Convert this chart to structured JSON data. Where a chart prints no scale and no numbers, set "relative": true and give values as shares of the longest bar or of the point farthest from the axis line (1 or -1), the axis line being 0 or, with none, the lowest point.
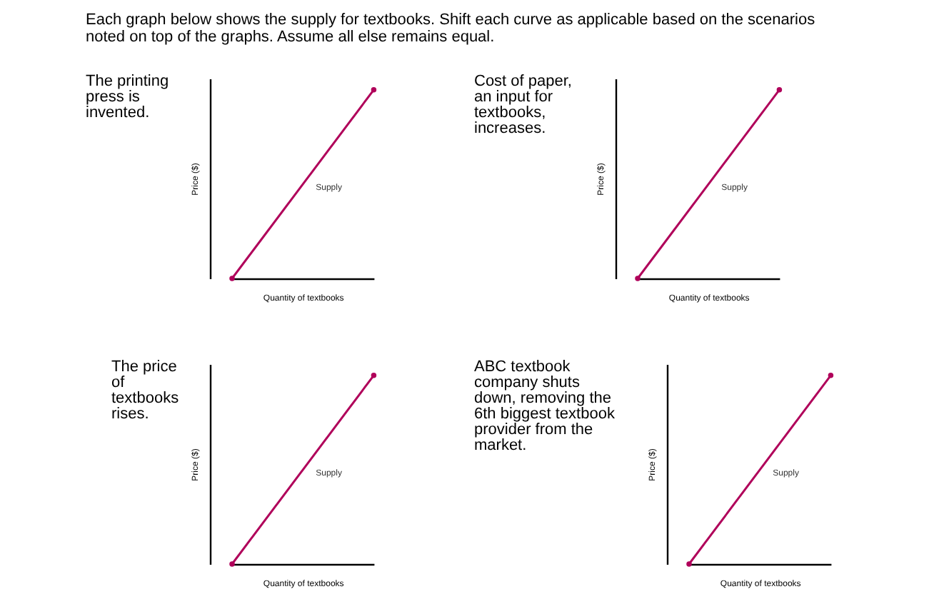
{
  "chart_data": [
    {
      "type": "line",
      "relative": true,
      "title": "The printing\npress is\ninvented.",
      "xlabel": "Quantity of textbooks",
      "ylabel": "Price ($)",
      "categories": [
        null,
        null
      ],
      "marker": "circle",
      "series": [
        {
          "name": "Supply",
          "color": "#b0005a",
          "values": [
            0,
            1
          ]
        }
      ],
      "annotations": [
        "Each graph below shows the supply for textbooks. Shift each curve as applicable based on the scenarios\nnoted on top of the graphs. Assume all else remains equal."
      ]
    },
    {
      "type": "line",
      "relative": true,
      "title": "Cost of paper,\nan input for\ntextbooks,\nincreases.",
      "xlabel": "Quantity of textbooks",
      "ylabel": "Price ($)",
      "categories": [
        null,
        null
      ],
      "marker": "circle",
      "series": [
        {
          "name": "Supply",
          "color": "#b0005a",
          "values": [
            0,
            1
          ]
        }
      ]
    },
    {
      "type": "line",
      "relative": true,
      "title": "The price\nof\ntextbooks\nrises.",
      "xlabel": "Quantity of textbooks",
      "ylabel": "Price ($)",
      "categories": [
        null,
        null
      ],
      "marker": "circle",
      "series": [
        {
          "name": "Supply",
          "color": "#b0005a",
          "values": [
            0,
            1
          ]
        }
      ]
    },
    {
      "type": "line",
      "relative": true,
      "title": "ABC textbook\ncompany shuts\ndown, removing the\n6th biggest textbook\nprovider from the\nmarket.",
      "xlabel": "Quantity of textbooks",
      "ylabel": "Price ($)",
      "categories": [
        null,
        null
      ],
      "marker": "circle",
      "series": [
        {
          "name": "Supply",
          "color": "#b0005a",
          "values": [
            0,
            1
          ]
        }
      ]
    }
  ]
}
